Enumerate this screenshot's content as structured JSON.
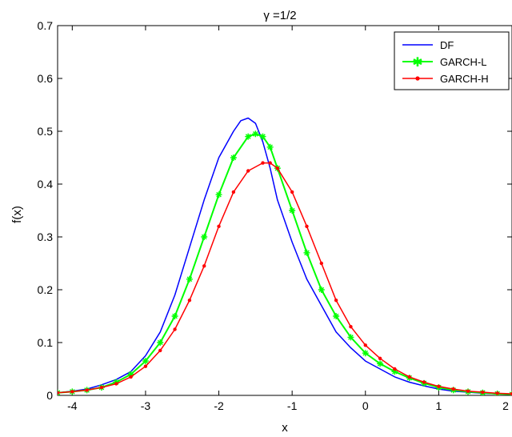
{
  "chart_data": {
    "type": "line",
    "title": "γ =1/2",
    "xlabel": "x",
    "ylabel": "f(x)",
    "xlim": [
      -4.2,
      2.0
    ],
    "ylim": [
      0,
      0.7
    ],
    "xticks": [
      -4,
      -3,
      -2,
      -1,
      0,
      1,
      2
    ],
    "xtick_labels": [
      "-4",
      "-3",
      "-2",
      "-1",
      "0",
      "1",
      "2"
    ],
    "yticks": [
      0,
      0.1,
      0.2,
      0.3,
      0.4,
      0.5,
      0.6,
      0.7
    ],
    "ytick_labels": [
      "0",
      "0.1",
      "0.2",
      "0.3",
      "0.4",
      "0.5",
      "0.6",
      "0.7"
    ],
    "grid": false,
    "legend_position": "top-right",
    "series": [
      {
        "name": "DF",
        "color": "#0000ff",
        "marker": "none",
        "x": [
          -4.2,
          -4.0,
          -3.8,
          -3.6,
          -3.4,
          -3.2,
          -3.0,
          -2.8,
          -2.6,
          -2.4,
          -2.2,
          -2.0,
          -1.8,
          -1.7,
          -1.6,
          -1.5,
          -1.4,
          -1.3,
          -1.2,
          -1.0,
          -0.8,
          -0.6,
          -0.4,
          -0.2,
          0.0,
          0.2,
          0.4,
          0.6,
          0.8,
          1.0,
          1.2,
          1.4,
          1.6,
          1.8,
          2.0
        ],
        "y": [
          0.005,
          0.008,
          0.012,
          0.02,
          0.03,
          0.045,
          0.075,
          0.12,
          0.19,
          0.28,
          0.37,
          0.45,
          0.5,
          0.52,
          0.525,
          0.515,
          0.48,
          0.43,
          0.37,
          0.29,
          0.22,
          0.17,
          0.12,
          0.09,
          0.065,
          0.05,
          0.035,
          0.025,
          0.018,
          0.012,
          0.008,
          0.006,
          0.004,
          0.003,
          0.002
        ]
      },
      {
        "name": "GARCH-L",
        "color": "#00ff00",
        "marker": "asterisk",
        "x": [
          -4.2,
          -4.0,
          -3.8,
          -3.6,
          -3.4,
          -3.2,
          -3.0,
          -2.8,
          -2.6,
          -2.4,
          -2.2,
          -2.0,
          -1.8,
          -1.6,
          -1.5,
          -1.4,
          -1.3,
          -1.2,
          -1.0,
          -0.8,
          -0.6,
          -0.4,
          -0.2,
          0.0,
          0.2,
          0.4,
          0.6,
          0.8,
          1.0,
          1.2,
          1.4,
          1.6,
          1.8,
          2.0
        ],
        "y": [
          0.005,
          0.007,
          0.01,
          0.015,
          0.025,
          0.04,
          0.065,
          0.1,
          0.15,
          0.22,
          0.3,
          0.38,
          0.45,
          0.49,
          0.495,
          0.49,
          0.47,
          0.43,
          0.35,
          0.27,
          0.2,
          0.15,
          0.11,
          0.08,
          0.06,
          0.045,
          0.033,
          0.023,
          0.015,
          0.01,
          0.007,
          0.005,
          0.003,
          0.002
        ]
      },
      {
        "name": "GARCH-H",
        "color": "#ff0000",
        "marker": "dot",
        "x": [
          -4.2,
          -4.0,
          -3.8,
          -3.6,
          -3.4,
          -3.2,
          -3.0,
          -2.8,
          -2.6,
          -2.4,
          -2.2,
          -2.0,
          -1.8,
          -1.6,
          -1.4,
          -1.3,
          -1.2,
          -1.0,
          -0.8,
          -0.6,
          -0.4,
          -0.2,
          0.0,
          0.2,
          0.4,
          0.6,
          0.8,
          1.0,
          1.2,
          1.4,
          1.6,
          1.8,
          2.0
        ],
        "y": [
          0.005,
          0.007,
          0.01,
          0.015,
          0.022,
          0.035,
          0.055,
          0.085,
          0.125,
          0.18,
          0.245,
          0.32,
          0.385,
          0.425,
          0.44,
          0.44,
          0.43,
          0.385,
          0.32,
          0.25,
          0.18,
          0.13,
          0.095,
          0.07,
          0.05,
          0.035,
          0.025,
          0.017,
          0.012,
          0.008,
          0.006,
          0.004,
          0.003
        ]
      }
    ]
  }
}
